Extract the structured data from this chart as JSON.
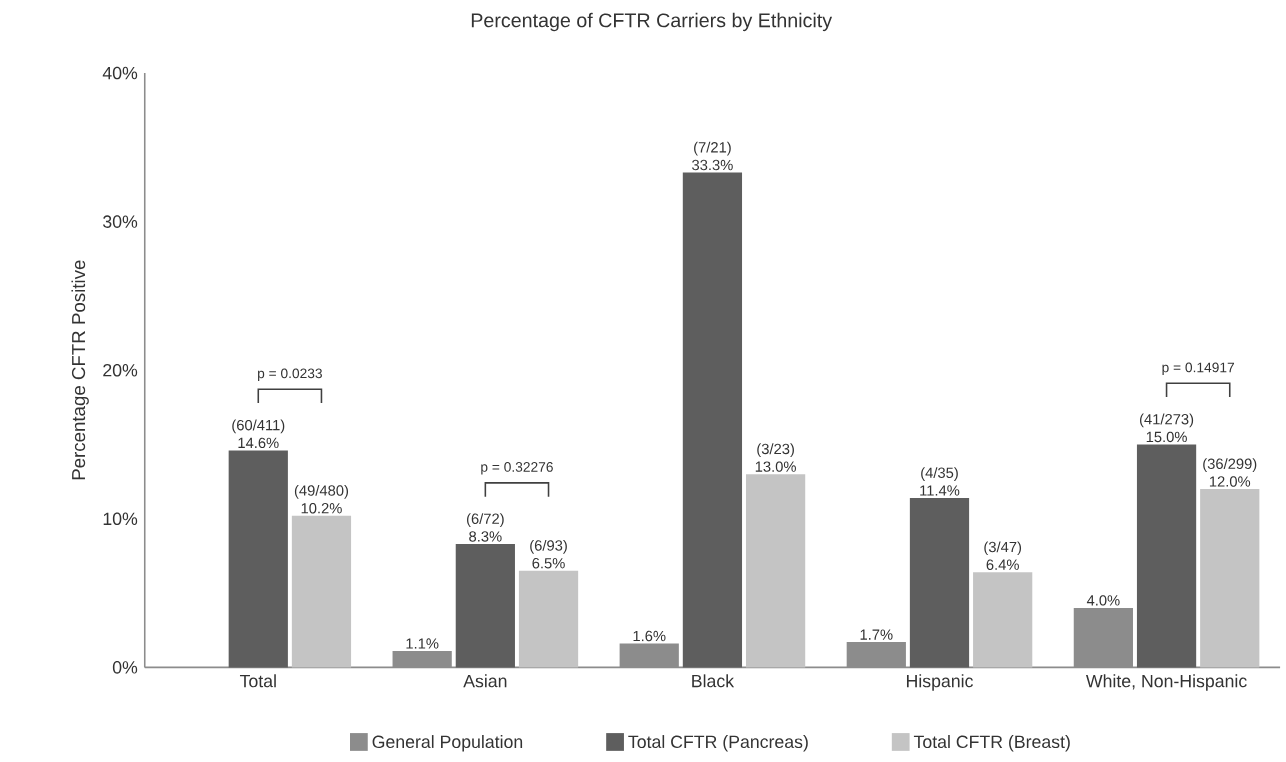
{
  "chart_data": {
    "type": "bar",
    "title": "Percentage of CFTR Carriers by Ethnicity",
    "ylabel": "Percentage CFTR Positive",
    "categories": [
      "Total",
      "Asian",
      "Black",
      "Hispanic",
      "White, Non-Hispanic"
    ],
    "series": [
      {
        "name": "General Population",
        "color": "#8c8c8c",
        "values": [
          null,
          1.1,
          1.6,
          1.7,
          4.0
        ],
        "value_labels": [
          null,
          "1.1%",
          "1.6%",
          "1.7%",
          "4.0%"
        ]
      },
      {
        "name": "Total CFTR (Pancreas)",
        "color": "#5e5e5e",
        "values": [
          14.6,
          8.3,
          33.3,
          11.4,
          15.0
        ],
        "value_labels": [
          "(60/411) 14.6%",
          "(6/72) 8.3%",
          "(7/21) 33.3%",
          "(4/35) 11.4%",
          "(41/273) 15.0%"
        ]
      },
      {
        "name": "Total CFTR (Breast)",
        "color": "#c4c4c4",
        "values": [
          10.2,
          6.5,
          13.0,
          6.4,
          12.0
        ],
        "value_labels": [
          "(49/480) 10.2%",
          "(6/93) 6.5%",
          "(3/23) 13.0%",
          "(3/47) 6.4%",
          "(36/299) 12.0%"
        ]
      }
    ],
    "ylim": [
      0,
      40
    ],
    "yticks": [
      {
        "value": 0,
        "label": "0%"
      },
      {
        "value": 10,
        "label": "10%"
      },
      {
        "value": 20,
        "label": "20%"
      },
      {
        "value": 30,
        "label": "30%"
      },
      {
        "value": 40,
        "label": "40%"
      }
    ],
    "grid": false,
    "legend": "bottom",
    "annotations": [
      "p = 0.0233",
      "p = 0.32276",
      "p = 0.14917"
    ]
  }
}
